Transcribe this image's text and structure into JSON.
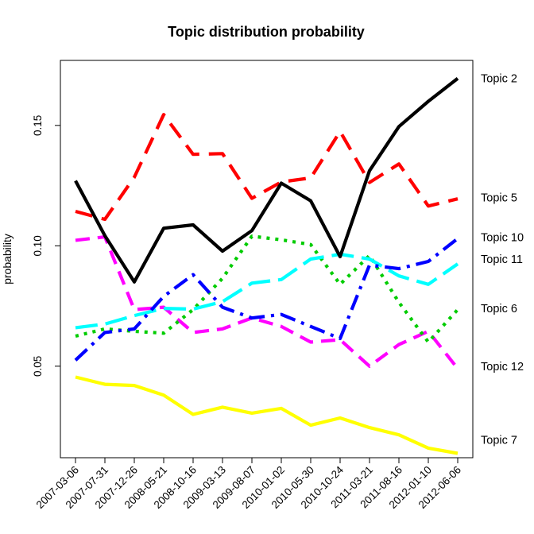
{
  "chart_data": {
    "type": "line",
    "title": "Topic distribution probability",
    "xlabel": "",
    "ylabel": "probability",
    "ylim": [
      0.012,
      0.177
    ],
    "y_ticks": [
      {
        "value": 0.05,
        "label": "0.05"
      },
      {
        "value": 0.1,
        "label": "0.10"
      },
      {
        "value": 0.15,
        "label": "0.15"
      }
    ],
    "categories": [
      "2007-03-06",
      "2007-07-31",
      "2007-12-26",
      "2008-05-21",
      "2008-10-16",
      "2009-03-13",
      "2009-08-07",
      "2010-01-02",
      "2010-05-30",
      "2010-10-24",
      "2011-03-21",
      "2011-08-16",
      "2012-01-10",
      "2012-06-06"
    ],
    "grid": false,
    "legend": "right-side labels",
    "series": [
      {
        "name": "Topic 2",
        "color": "#000000",
        "dash": "solid",
        "label_value": 0.1695,
        "values": [
          0.127,
          0.1042,
          0.085,
          0.1073,
          0.1087,
          0.0978,
          0.1063,
          0.126,
          0.1187,
          0.0955,
          0.1312,
          0.1495,
          0.16,
          0.1695
        ]
      },
      {
        "name": "Topic 5",
        "color": "#ff0000",
        "dash": "long",
        "label_value": 0.12,
        "values": [
          0.1143,
          0.111,
          0.1285,
          0.1545,
          0.138,
          0.1383,
          0.1197,
          0.1265,
          0.1282,
          0.1475,
          0.1263,
          0.134,
          0.1165,
          0.1195
        ]
      },
      {
        "name": "Topic 10",
        "color": "#0000ff",
        "dash": "dashdot",
        "label_value": 0.1035,
        "values": [
          0.0525,
          0.064,
          0.0655,
          0.079,
          0.088,
          0.0745,
          0.07,
          0.0715,
          0.0665,
          0.0615,
          0.092,
          0.0905,
          0.0935,
          0.103
        ]
      },
      {
        "name": "Topic 11",
        "color": "#00ffff",
        "dash": "longer",
        "label_value": 0.0945,
        "values": [
          0.066,
          0.0675,
          0.071,
          0.074,
          0.0737,
          0.0768,
          0.0845,
          0.086,
          0.0945,
          0.0965,
          0.0945,
          0.0875,
          0.084,
          0.0925
        ]
      },
      {
        "name": "Topic 6",
        "color": "#00cc00",
        "dash": "dotted",
        "label_value": 0.074,
        "values": [
          0.0625,
          0.0655,
          0.0645,
          0.0637,
          0.0735,
          0.0865,
          0.104,
          0.1025,
          0.1005,
          0.084,
          0.096,
          0.0765,
          0.06,
          0.0735
        ]
      },
      {
        "name": "Topic 12",
        "color": "#ff00ff",
        "dash": "medium",
        "label_value": 0.05,
        "values": [
          0.1023,
          0.1037,
          0.0735,
          0.0745,
          0.064,
          0.0655,
          0.07,
          0.0665,
          0.06,
          0.061,
          0.05,
          0.059,
          0.0645,
          0.049
        ]
      },
      {
        "name": "Topic 7",
        "color": "#ffff00",
        "dash": "solid",
        "label_value": 0.0195,
        "values": [
          0.0455,
          0.0425,
          0.042,
          0.038,
          0.03,
          0.033,
          0.0305,
          0.0325,
          0.0255,
          0.0285,
          0.0245,
          0.0215,
          0.016,
          0.0138
        ]
      }
    ]
  }
}
